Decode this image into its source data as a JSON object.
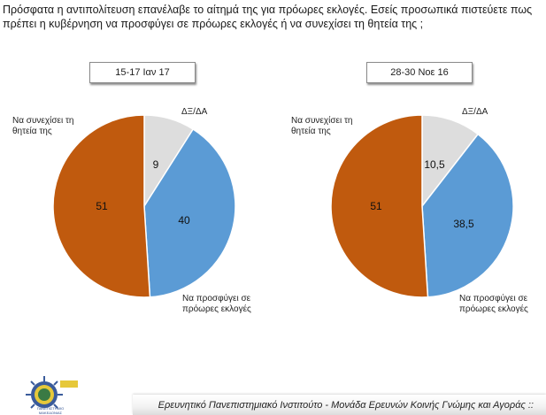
{
  "question": "Πρόσφατα η αντιπολίτευση επανέλαβε το αίτημά της για πρόωρες εκλογές. Εσείς προσωπικά πιστεύετε πως πρέπει η κυβέρνηση να προσφύγει σε πρόωρες εκλογές ή να συνεχίσει τη θητεία της ;",
  "colors": {
    "continue": "#c05a0e",
    "elections": "#5b9bd5",
    "dk": "#dddddd"
  },
  "chart_data": [
    {
      "type": "pie",
      "title": "15-17 Ιαν 17",
      "slices": [
        {
          "label": "ΔΞ/ΔΑ",
          "value": 9,
          "display": "9"
        },
        {
          "label": "Να προσφύγει σε πρόωρες εκλογές",
          "value": 40,
          "display": "40"
        },
        {
          "label": "Να συνεχίσει τη θητεία της",
          "value": 51,
          "display": "51"
        }
      ]
    },
    {
      "type": "pie",
      "title": "28-30 Νοε 16",
      "slices": [
        {
          "label": "ΔΞ/ΔΑ",
          "value": 10.5,
          "display": "10,5"
        },
        {
          "label": "Να προσφύγει σε πρόωρες εκλογές",
          "value": 38.5,
          "display": "38,5"
        },
        {
          "label": "Να συνεχίσει τη θητεία της",
          "value": 51,
          "display": "51"
        }
      ]
    }
  ],
  "labels": {
    "continue_line1": "Να συνεχίσει τη",
    "continue_line2": "θητεία της",
    "dk": "ΔΞ/ΔΑ",
    "elections_line1": "Να προσφύγει  σε",
    "elections_line2": "πρόωρες εκλογές"
  },
  "footer": "Ερευνητικό Πανεπιστημιακό Ινστιτούτο - Μονάδα Ερευνών Κοινής Γνώμης και Αγοράς ::",
  "logo": {
    "icon": "university-seal-icon",
    "caption_line1": "ΠΑΝΕΠΙΣΤΗΜΙΟ",
    "caption_line2": "ΜΑΚΕΔΟΝΙΑΣ"
  }
}
